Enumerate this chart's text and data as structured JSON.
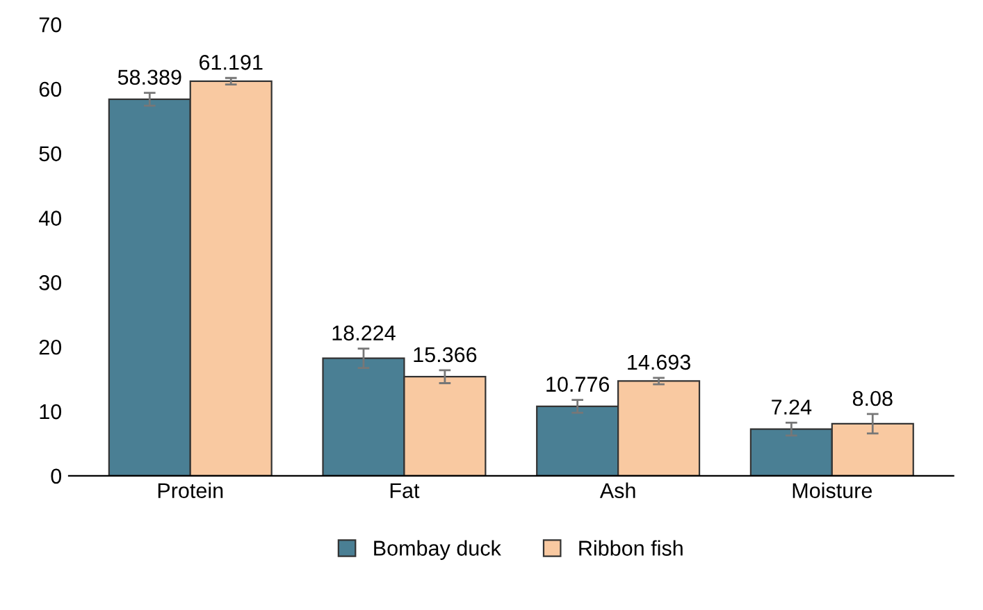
{
  "chart_data": {
    "type": "bar",
    "categories": [
      "Protein",
      "Fat",
      "Ash",
      "Moisture"
    ],
    "series": [
      {
        "name": "Bombay duck",
        "color": "#4a7f94",
        "values": [
          58.389,
          18.224,
          10.776,
          7.24
        ],
        "errors": [
          1,
          1.5,
          1,
          1
        ]
      },
      {
        "name": "Ribbon fish",
        "color": "#f9c9a1",
        "values": [
          61.191,
          15.366,
          14.693,
          8.08
        ],
        "errors": [
          0.5,
          1,
          0.5,
          1.5
        ]
      }
    ],
    "ylim": [
      0,
      70
    ],
    "yticks": [
      0,
      10,
      20,
      30,
      40,
      50,
      60,
      70
    ],
    "data_labels": true,
    "grid": false,
    "legend": "bottom"
  }
}
